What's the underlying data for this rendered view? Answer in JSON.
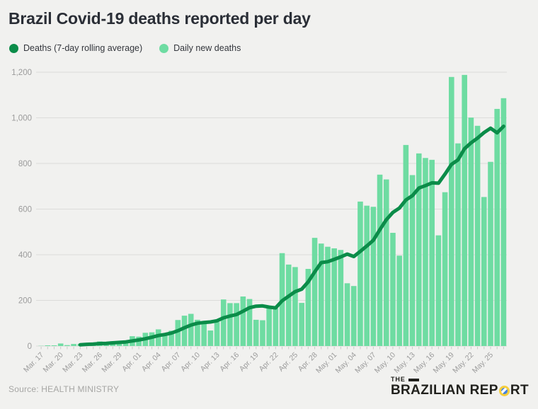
{
  "header": {
    "title": "Brazil Covid-19 deaths reported per day"
  },
  "legend": [
    {
      "label": "Deaths (7-day rolling average)",
      "color": "#0b8c49"
    },
    {
      "label": "Daily new deaths",
      "color": "#6edca2"
    }
  ],
  "footer": {
    "source": "Source: HEALTH MINISTRY"
  },
  "logo": {
    "the": "THE",
    "brand_pre": "BRAZILIAN REP",
    "brand_post": "RT"
  },
  "colors": {
    "background": "#f1f1ef",
    "grid": "#dcdcda",
    "axis_label": "#9b9b9b",
    "tick": "#c9c9c7",
    "bar": "#6edca2",
    "line": "#0b8c49"
  },
  "chart_data": {
    "type": "bar",
    "title": "Brazil Covid-19 deaths reported per day",
    "xlabel": "",
    "ylabel": "",
    "ylim": [
      0,
      1200
    ],
    "yticks": [
      0,
      200,
      400,
      600,
      800,
      1000,
      1200
    ],
    "ytick_labels": [
      "0",
      "200",
      "400",
      "600",
      "800",
      "1,000",
      "1,200"
    ],
    "grid": true,
    "legend_position": "top-left",
    "tick_label_every": 3,
    "x": [
      "Mar. 17",
      "Mar. 18",
      "Mar. 19",
      "Mar. 20",
      "Mar. 21",
      "Mar. 22",
      "Mar. 23",
      "Mar. 24",
      "Mar. 25",
      "Mar. 26",
      "Mar. 27",
      "Mar. 28",
      "Mar. 29",
      "Mar. 30",
      "Mar. 31",
      "Apr. 01",
      "Apr. 02",
      "Apr. 03",
      "Apr. 04",
      "Apr. 05",
      "Apr. 06",
      "Apr. 07",
      "Apr. 08",
      "Apr. 09",
      "Apr. 10",
      "Apr. 11",
      "Apr. 12",
      "Apr. 13",
      "Apr. 14",
      "Apr. 15",
      "Apr. 16",
      "Apr. 17",
      "Apr. 18",
      "Apr. 19",
      "Apr. 20",
      "Apr. 21",
      "Apr. 22",
      "Apr. 23",
      "Apr. 24",
      "Apr. 25",
      "Apr. 26",
      "Apr. 27",
      "Apr. 28",
      "Apr. 29",
      "Apr. 30",
      "May. 01",
      "May. 02",
      "May. 03",
      "May. 04",
      "May. 05",
      "May. 06",
      "May. 07",
      "May. 08",
      "May. 09",
      "May. 10",
      "May. 11",
      "May. 12",
      "May. 13",
      "May. 14",
      "May. 15",
      "May. 16",
      "May. 17",
      "May. 18",
      "May. 19",
      "May. 20",
      "May. 21",
      "May. 22",
      "May. 23",
      "May. 24",
      "May. 25",
      "May. 26",
      "May. 27"
    ],
    "series": [
      {
        "name": "Daily new deaths",
        "type": "bar",
        "color": "#6edca2",
        "values": [
          1,
          3,
          3,
          11,
          4,
          9,
          9,
          12,
          11,
          20,
          15,
          21,
          22,
          24,
          43,
          41,
          58,
          60,
          73,
          55,
          67,
          114,
          133,
          141,
          115,
          99,
          68,
          105,
          204,
          188,
          188,
          217,
          206,
          115,
          113,
          166,
          165,
          407,
          357,
          346,
          189,
          338,
          474,
          449,
          435,
          428,
          421,
          275,
          263,
          633,
          615,
          610,
          751,
          730,
          496,
          396,
          881,
          749,
          844,
          824,
          816,
          485,
          674,
          1179,
          888,
          1188,
          1001,
          965,
          653,
          807,
          1039,
          1086
        ]
      },
      {
        "name": "Deaths (7-day rolling average)",
        "type": "line",
        "color": "#0b8c49",
        "values": [
          null,
          null,
          null,
          null,
          null,
          null,
          5.7,
          7.3,
          8.4,
          10.9,
          11.4,
          13.9,
          15.7,
          17.9,
          22.3,
          26.6,
          32.0,
          38.4,
          45.9,
          50.6,
          56.7,
          66.9,
          80.0,
          91.9,
          99.7,
          103.4,
          105.3,
          110.7,
          123.6,
          131.4,
          138.1,
          152.7,
          168.0,
          174.7,
          175.9,
          170.4,
          167.1,
          198.4,
          218.4,
          238.4,
          249.0,
          281.1,
          325.1,
          365.7,
          369.7,
          379.9,
          390.6,
          402.9,
          392.1,
          414.9,
          438.6,
          463.6,
          509.7,
          553.9,
          585.4,
          604.4,
          639.9,
          659.0,
          692.4,
          702.9,
          715.1,
          713.6,
          753.3,
          795.9,
          815.7,
          864.9,
          890.1,
          911.4,
          935.4,
          954.4,
          934.4,
          962.7
        ]
      }
    ]
  }
}
